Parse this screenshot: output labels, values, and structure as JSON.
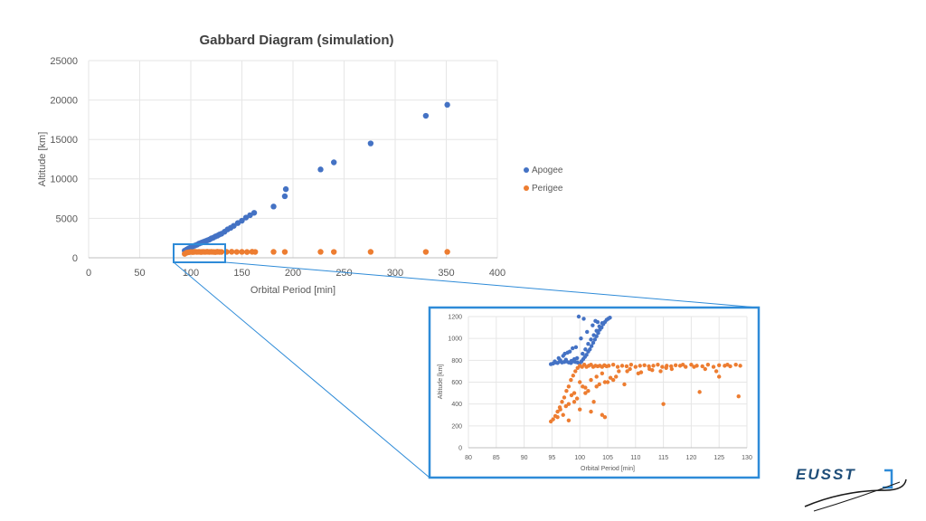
{
  "colors": {
    "apogee": "#4472C4",
    "perigee": "#ED7D31",
    "zoom_frame": "#2E8BD8",
    "grid": "#E6E6E6",
    "tick_text": "#595959",
    "title_text": "#404040",
    "logo_blue": "#1F4E79"
  },
  "logo": {
    "text": "EUSST"
  },
  "chart_data": [
    {
      "type": "scatter",
      "title": "Gabbard Diagram (simulation)",
      "xlabel": "Orbital Period [min]",
      "ylabel": "Altitude [km]",
      "xlim": [
        0,
        400
      ],
      "ylim": [
        0,
        25000
      ],
      "xticks": [
        "0",
        "50",
        "100",
        "150",
        "200",
        "250",
        "300",
        "350",
        "400"
      ],
      "yticks": [
        "0",
        "5000",
        "10000",
        "15000",
        "20000",
        "25000"
      ],
      "grid": true,
      "legend": "right",
      "series": [
        {
          "name": "Apogee",
          "x": [
            94,
            96,
            98,
            100,
            102,
            104,
            106,
            108,
            110,
            112,
            114,
            116,
            118,
            120,
            122,
            124,
            126,
            128,
            130,
            133,
            136,
            139,
            142,
            146,
            150,
            154,
            158,
            162,
            181,
            192,
            193,
            227,
            240,
            276,
            330,
            351
          ],
          "y": [
            900,
            1050,
            1200,
            1350,
            1450,
            1550,
            1650,
            1800,
            1900,
            2000,
            2100,
            2200,
            2300,
            2450,
            2550,
            2700,
            2800,
            2950,
            3050,
            3300,
            3600,
            3800,
            4050,
            4400,
            4700,
            5100,
            5400,
            5700,
            6500,
            7800,
            8700,
            11200,
            12100,
            14500,
            18000,
            19400
          ]
        },
        {
          "name": "Perigee",
          "x": [
            94,
            96,
            98,
            100,
            102,
            104,
            106,
            108,
            110,
            112,
            114,
            116,
            118,
            120,
            122,
            124,
            126,
            128,
            130,
            135,
            140,
            145,
            150,
            155,
            160,
            163,
            181,
            192,
            227,
            240,
            276,
            330,
            351
          ],
          "y": [
            500,
            650,
            700,
            740,
            720,
            760,
            740,
            750,
            730,
            750,
            740,
            760,
            740,
            750,
            740,
            720,
            760,
            740,
            740,
            750,
            760,
            740,
            750,
            730,
            760,
            740,
            750,
            740,
            750,
            740,
            750,
            740,
            750
          ]
        }
      ]
    },
    {
      "type": "scatter",
      "xlabel": "Orbital Period [min]",
      "ylabel": "Altitude [km]",
      "xlim": [
        80,
        130
      ],
      "ylim": [
        0,
        1200
      ],
      "xticks": [
        "80",
        "85",
        "90",
        "95",
        "100",
        "105",
        "110",
        "115",
        "120",
        "125",
        "130"
      ],
      "yticks": [
        "0",
        "200",
        "400",
        "600",
        "800",
        "1000",
        "1200"
      ],
      "grid": true,
      "series": [
        {
          "name": "Apogee",
          "x": [
            94.8,
            95.2,
            95.6,
            96.0,
            96.4,
            96.8,
            97.2,
            97.6,
            98.0,
            98.4,
            98.8,
            99.2,
            99.6,
            100.0,
            100.3,
            100.6,
            100.9,
            101.2,
            101.5,
            101.8,
            102.1,
            102.4,
            102.7,
            103.0,
            103.3,
            103.6,
            103.9,
            104.2,
            104.5,
            104.8,
            105.1,
            105.4,
            95.5,
            96.5,
            97.5,
            98.5,
            99.0,
            99.5,
            100.5,
            101.0,
            101.5,
            102.0,
            102.5,
            103.0,
            103.5,
            96.2,
            97.0,
            97.8,
            98.2,
            99.3,
            100.2,
            101.3,
            102.3,
            103.2,
            97.3,
            98.7,
            100.7,
            102.8,
            104.0,
            99.8
          ],
          "y": [
            765,
            770,
            780,
            775,
            790,
            780,
            785,
            790,
            780,
            775,
            790,
            785,
            780,
            770,
            790,
            810,
            830,
            850,
            880,
            900,
            930,
            960,
            990,
            1020,
            1050,
            1080,
            1100,
            1130,
            1150,
            1170,
            1180,
            1190,
            790,
            800,
            805,
            795,
            810,
            820,
            860,
            900,
            950,
            990,
            1030,
            1070,
            1110,
            820,
            840,
            870,
            880,
            920,
            1000,
            1060,
            1120,
            1150,
            860,
            910,
            1180,
            1160,
            1140,
            1200
          ]
        },
        {
          "name": "Perigee",
          "x": [
            94.8,
            95.2,
            95.6,
            96.0,
            96.4,
            96.8,
            97.2,
            97.6,
            98.0,
            98.4,
            98.8,
            99.2,
            99.6,
            100.0,
            100.4,
            100.8,
            101.2,
            101.6,
            102.0,
            102.4,
            102.8,
            103.2,
            103.6,
            104.0,
            104.4,
            104.8,
            105.2,
            106.0,
            106.8,
            107.6,
            108.4,
            109.2,
            110.0,
            110.8,
            111.6,
            112.4,
            113.2,
            114.0,
            114.8,
            115.6,
            116.4,
            117.2,
            118.0,
            119.0,
            120.0,
            121.0,
            122.0,
            123.0,
            124.0,
            125.0,
            126.0,
            127.0,
            128.0,
            128.8,
            97.0,
            98.0,
            99.0,
            100.0,
            101.0,
            102.0,
            103.0,
            104.0,
            99.5,
            101.5,
            103.5,
            105.5,
            107.0,
            109.0,
            111.0,
            113.0,
            115.5,
            96.5,
            98.5,
            100.5,
            102.5,
            104.5,
            106.5,
            108.5,
            110.5,
            112.5,
            114.5,
            116.5,
            118.5,
            120.5,
            122.5,
            124.5,
            126.5,
            96.0,
            97.5,
            99.0,
            101.0,
            103.0,
            105.0,
            100.0,
            102.0,
            104.0,
            106.0,
            108.0,
            121.5,
            128.5,
            115.0,
            125.0,
            104.5,
            98.0
          ],
          "y": [
            240,
            260,
            290,
            330,
            370,
            420,
            460,
            520,
            560,
            620,
            660,
            700,
            730,
            750,
            740,
            760,
            740,
            750,
            760,
            740,
            750,
            745,
            750,
            740,
            755,
            745,
            750,
            760,
            740,
            750,
            745,
            760,
            740,
            750,
            755,
            745,
            750,
            760,
            740,
            750,
            745,
            755,
            750,
            740,
            760,
            750,
            745,
            760,
            740,
            755,
            750,
            745,
            760,
            750,
            300,
            400,
            500,
            600,
            550,
            620,
            650,
            680,
            450,
            520,
            580,
            640,
            700,
            720,
            690,
            710,
            730,
            350,
            480,
            560,
            420,
            600,
            650,
            700,
            680,
            720,
            700,
            720,
            760,
            740,
            720,
            700,
            760,
            280,
            380,
            420,
            500,
            560,
            600,
            350,
            330,
            300,
            620,
            580,
            510,
            470,
            400,
            650,
            280,
            250
          ]
        }
      ]
    }
  ]
}
